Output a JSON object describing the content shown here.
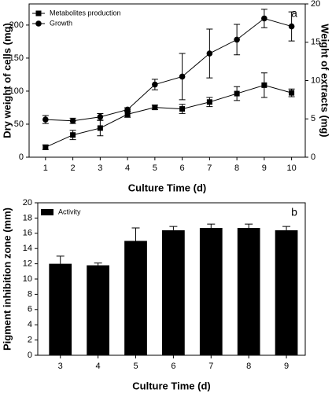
{
  "chart_data": [
    {
      "type": "line",
      "panel_label": "a",
      "x_label": "Culture Time (d)",
      "y_label": "Dry weight of cells (mg)",
      "y2_label": "Weight of extracts (mg)",
      "categories": [
        "1",
        "2",
        "3",
        "4",
        "5",
        "6",
        "7",
        "8",
        "9",
        "10"
      ],
      "ylim": [
        0,
        232
      ],
      "yticks": [
        0,
        50,
        100,
        150,
        200
      ],
      "y2lim": [
        0,
        20
      ],
      "y2ticks": [
        0,
        5,
        10,
        15,
        20
      ],
      "legend": "top-left",
      "series": [
        {
          "name": "Metabolites production",
          "marker": "square",
          "color": "#000000",
          "axis": "y2",
          "values": [
            1.3,
            2.9,
            3.8,
            5.6,
            6.5,
            6.3,
            7.2,
            8.3,
            9.4,
            8.4
          ],
          "errors": [
            0.3,
            0.6,
            1.0,
            0.4,
            0.3,
            0.6,
            0.6,
            0.9,
            1.6,
            0.5
          ]
        },
        {
          "name": "Growth",
          "marker": "circle",
          "color": "#000000",
          "values": [
            57,
            55,
            61,
            72,
            110,
            122,
            157,
            178,
            210,
            198
          ],
          "errors": [
            6,
            4,
            5,
            3,
            8,
            35,
            37,
            23,
            14,
            22
          ]
        }
      ]
    },
    {
      "type": "bar",
      "panel_label": "b",
      "x_label": "Culture Time (d)",
      "y_label": "Pigment inhibition zone (mm)",
      "categories": [
        "3",
        "4",
        "5",
        "6",
        "7",
        "8",
        "9"
      ],
      "ylim": [
        0,
        20
      ],
      "yticks": [
        0,
        2,
        4,
        6,
        8,
        10,
        12,
        14,
        16,
        18,
        20
      ],
      "legend": "top-left",
      "series": [
        {
          "name": "Activity",
          "color": "#000000",
          "values": [
            12,
            11.8,
            15,
            16.4,
            16.7,
            16.7,
            16.4
          ],
          "errors": [
            1,
            0.3,
            1.7,
            0.5,
            0.5,
            0.5,
            0.5
          ]
        }
      ]
    }
  ]
}
